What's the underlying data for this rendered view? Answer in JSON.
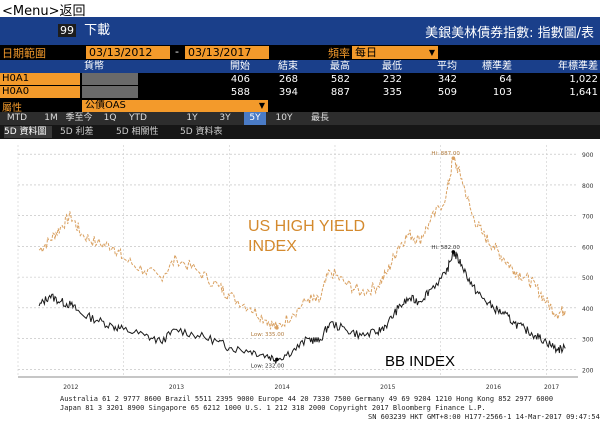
{
  "menu": {
    "label": "<Menu>返回"
  },
  "toolbar": {
    "download_num": "99",
    "download_label": "下載",
    "title": "美銀美林債券指數: 指數圖/表"
  },
  "date_range": {
    "label": "日期範圍",
    "start": "03/13/2012",
    "sep": "-",
    "end": "03/13/2017",
    "freq_label": "頻率",
    "freq_value": "每日"
  },
  "table": {
    "headers": [
      "貨幣",
      "開始",
      "結束",
      "最高",
      "最低",
      "平均",
      "標準差",
      "年標準差"
    ],
    "rows": [
      {
        "name": "H0A1",
        "start": "406",
        "end": "268",
        "high": "582",
        "low": "232",
        "avg": "342",
        "std": "64",
        "ann_std": "1,022"
      },
      {
        "name": "H0A0",
        "start": "588",
        "end": "394",
        "high": "887",
        "low": "335",
        "avg": "509",
        "std": "103",
        "ann_std": "1,641"
      }
    ]
  },
  "attribute": {
    "label": "屬性",
    "value": "公債OAS"
  },
  "periods": [
    "MTD",
    "1M",
    "季至今",
    "1Q",
    "YTD",
    "1Y",
    "3Y",
    "5Y",
    "10Y",
    "最長"
  ],
  "active_period": "5Y",
  "tabs": [
    "5D 資料圖",
    "5D 利差",
    "5D 相關性",
    "5D 資料表"
  ],
  "colors": {
    "blue": "#1a3f8a",
    "orange": "#f39a2b",
    "hy_line": "#d9a060",
    "bb_line": "#1a1a1a"
  },
  "chart_data": {
    "type": "line",
    "x_ticks": [
      "2012",
      "2013",
      "2014",
      "2015",
      "2016",
      "2017"
    ],
    "y_ticks": [
      200,
      300,
      400,
      500,
      600,
      700,
      800,
      900
    ],
    "ylim": [
      175,
      930
    ],
    "series": [
      {
        "name": "US HIGH YIELD INDEX",
        "values": [
          [
            2012.2,
            588
          ],
          [
            2012.3,
            620
          ],
          [
            2012.4,
            660
          ],
          [
            2012.5,
            700
          ],
          [
            2012.6,
            640
          ],
          [
            2012.75,
            610
          ],
          [
            2012.9,
            600
          ],
          [
            2013.0,
            560
          ],
          [
            2013.2,
            520
          ],
          [
            2013.35,
            500
          ],
          [
            2013.5,
            560
          ],
          [
            2013.7,
            520
          ],
          [
            2013.9,
            470
          ],
          [
            2014.0,
            440
          ],
          [
            2014.2,
            400
          ],
          [
            2014.35,
            360
          ],
          [
            2014.45,
            335
          ],
          [
            2014.6,
            380
          ],
          [
            2014.75,
            430
          ],
          [
            2014.85,
            420
          ],
          [
            2014.95,
            520
          ],
          [
            2015.1,
            480
          ],
          [
            2015.25,
            450
          ],
          [
            2015.4,
            470
          ],
          [
            2015.5,
            520
          ],
          [
            2015.6,
            600
          ],
          [
            2015.7,
            640
          ],
          [
            2015.8,
            620
          ],
          [
            2015.9,
            680
          ],
          [
            2016.05,
            760
          ],
          [
            2016.12,
            887
          ],
          [
            2016.2,
            820
          ],
          [
            2016.3,
            700
          ],
          [
            2016.4,
            640
          ],
          [
            2016.5,
            600
          ],
          [
            2016.6,
            560
          ],
          [
            2016.7,
            520
          ],
          [
            2016.8,
            500
          ],
          [
            2016.9,
            470
          ],
          [
            2017.0,
            420
          ],
          [
            2017.1,
            380
          ],
          [
            2017.18,
            394
          ]
        ]
      },
      {
        "name": "BB INDEX",
        "values": [
          [
            2012.2,
            406
          ],
          [
            2012.3,
            440
          ],
          [
            2012.4,
            420
          ],
          [
            2012.5,
            410
          ],
          [
            2012.6,
            380
          ],
          [
            2012.75,
            360
          ],
          [
            2012.9,
            340
          ],
          [
            2013.0,
            330
          ],
          [
            2013.2,
            310
          ],
          [
            2013.35,
            290
          ],
          [
            2013.5,
            330
          ],
          [
            2013.7,
            310
          ],
          [
            2013.9,
            290
          ],
          [
            2014.0,
            270
          ],
          [
            2014.2,
            260
          ],
          [
            2014.35,
            245
          ],
          [
            2014.45,
            232
          ],
          [
            2014.6,
            260
          ],
          [
            2014.75,
            300
          ],
          [
            2014.85,
            290
          ],
          [
            2014.95,
            350
          ],
          [
            2015.1,
            330
          ],
          [
            2015.25,
            310
          ],
          [
            2015.4,
            320
          ],
          [
            2015.5,
            350
          ],
          [
            2015.6,
            400
          ],
          [
            2015.7,
            430
          ],
          [
            2015.8,
            420
          ],
          [
            2015.9,
            460
          ],
          [
            2016.05,
            510
          ],
          [
            2016.12,
            582
          ],
          [
            2016.2,
            540
          ],
          [
            2016.3,
            470
          ],
          [
            2016.4,
            430
          ],
          [
            2016.5,
            400
          ],
          [
            2016.6,
            380
          ],
          [
            2016.7,
            350
          ],
          [
            2016.8,
            330
          ],
          [
            2016.9,
            310
          ],
          [
            2017.0,
            290
          ],
          [
            2017.1,
            265
          ],
          [
            2017.18,
            268
          ]
        ]
      }
    ],
    "annotations": [
      {
        "text": "Hi: 887.00",
        "x": 2016.12,
        "y": 887
      },
      {
        "text": "Hi: 582.00",
        "x": 2016.12,
        "y": 582
      },
      {
        "text": "Low: 335.00",
        "x": 2014.45,
        "y": 335
      },
      {
        "text": "Low: 232.00",
        "x": 2014.45,
        "y": 232
      }
    ],
    "labels": {
      "hy": "US HIGH YIELD\nINDEX",
      "bb": "BB INDEX"
    }
  },
  "footer": {
    "line1": "Australia 61 2 9777 8600 Brazil 5511 2395 9000 Europe 44 20 7330 7500 Germany 49 69 9204 1210 Hong Kong 852 2977 6000",
    "line2": "Japan 81 3 3201 8900      Singapore 65 6212 1000      U.S. 1 212 318 2000        Copyright 2017 Bloomberg Finance L.P.",
    "line3": "SN 603239 HKT  GMT+8:00 H177-2566-1 14-Mar-2017 09:47:54"
  }
}
